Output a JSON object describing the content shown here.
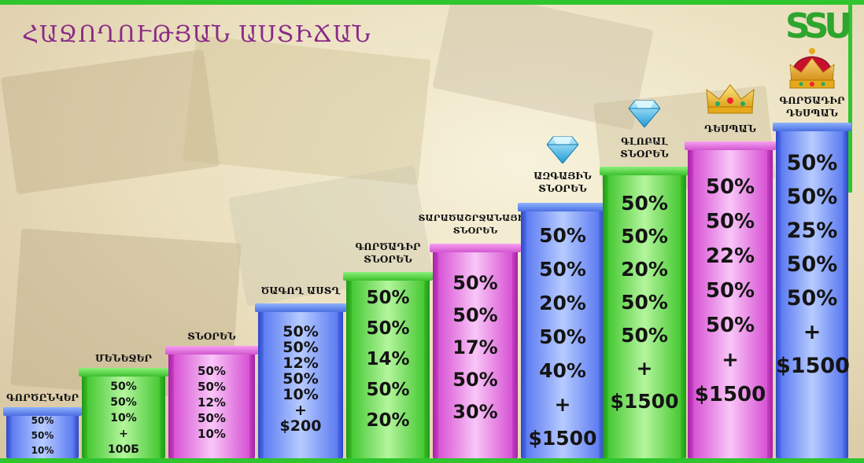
{
  "title": "ՀԱՋՈՂՈՒԹՅԱՆ ԱՍՏԻՃԱՆ",
  "logo_text": "SSU",
  "colors": {
    "frame": "#2ec52e",
    "title": "#8a2a86",
    "blue": "#4a6fe0",
    "green": "#3cc02e",
    "pink": "#d256d0"
  },
  "steps": [
    {
      "label": "ԳՈՐԾԸՆԿԵՐ",
      "values": [
        "50%",
        "50%",
        "10%"
      ],
      "color": "blue"
    },
    {
      "label": "ՄԵՆԵՋԵՐ",
      "values": [
        "50%",
        "50%",
        "10%",
        "+",
        "100Б"
      ],
      "color": "green"
    },
    {
      "label": "ՏՆՕՐԵՆ",
      "values": [
        "50%",
        "50%",
        "12%",
        "50%",
        "10%"
      ],
      "color": "pink"
    },
    {
      "label": "ԾԱԳՈՂ ԱՍՏՂ",
      "values": [
        "50%",
        "50%",
        "12%",
        "50%",
        "10%",
        "+",
        "$200"
      ],
      "color": "blue"
    },
    {
      "label": "ԳՈՐԾԱԴԻՐ ՏՆՕՐԵՆ",
      "values": [
        "50%",
        "50%",
        "14%",
        "50%",
        "20%"
      ],
      "color": "green"
    },
    {
      "label": "ՏԱՐԱԾԱՇՐՋԱՆԱՅԻՆ ՏՆՕՐԵՆ",
      "values": [
        "50%",
        "50%",
        "17%",
        "50%",
        "30%"
      ],
      "color": "pink"
    },
    {
      "label": "ԱԶԳԱՅԻՆ ՏՆՕՐԵՆ",
      "values": [
        "50%",
        "50%",
        "20%",
        "50%",
        "40%",
        "+",
        "$1500"
      ],
      "color": "blue",
      "icon": "diamond-icon"
    },
    {
      "label": "ԳԼՈԲԱԼ ՏՆՕՐԵՆ",
      "values": [
        "50%",
        "50%",
        "20%",
        "50%",
        "50%",
        "+",
        "$1500"
      ],
      "color": "green",
      "icon": "diamond-icon"
    },
    {
      "label": "ԴԵՍՊԱՆ",
      "values": [
        "50%",
        "50%",
        "22%",
        "50%",
        "50%",
        "+",
        "$1500"
      ],
      "color": "pink",
      "icon": "gold-crown-icon"
    },
    {
      "label": "ԳՈՐԾԱԴԻՐ ԴԵՍՊԱՆ",
      "values": [
        "50%",
        "50%",
        "25%",
        "50%",
        "50%",
        "+",
        "$1500"
      ],
      "color": "blue",
      "icon": "red-crown-icon"
    }
  ]
}
